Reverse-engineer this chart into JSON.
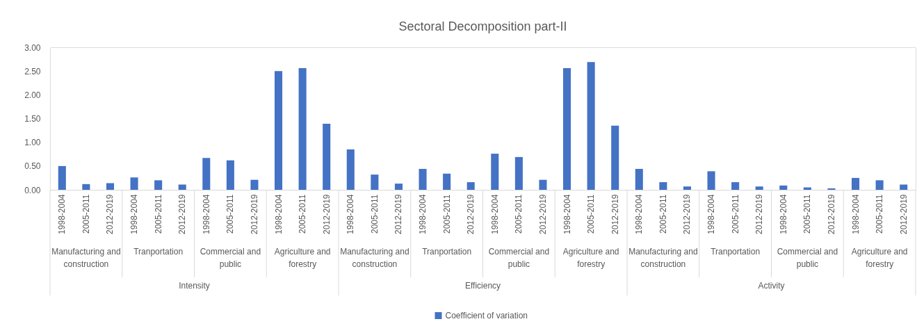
{
  "chart_data": {
    "type": "bar",
    "title": "Sectoral Decomposition part-II",
    "categories": [
      "1998-2004",
      "2005-2011",
      "2012-2019",
      "1998-2004",
      "2005-2011",
      "2012-2019",
      "1998-2004",
      "2005-2011",
      "2012-2019",
      "1998-2004",
      "2005-2011",
      "2012-2019",
      "1998-2004",
      "2005-2011",
      "2012-2019",
      "1998-2004",
      "2005-2011",
      "2012-2019",
      "1998-2004",
      "2005-2011",
      "2012-2019",
      "1998-2004",
      "2005-2011",
      "2012-2019",
      "1998-2004",
      "2005-2011",
      "2012-2019",
      "1998-2004",
      "2005-2011",
      "2012-2019",
      "1998-2004",
      "2005-2011",
      "2012-2019",
      "1998-2004",
      "2005-2011",
      "2012-2019"
    ],
    "series": [
      {
        "name": "Coefficient of variation",
        "color": "#4472c4",
        "values": [
          0.5,
          0.12,
          0.14,
          0.26,
          0.2,
          0.11,
          0.67,
          0.62,
          0.21,
          2.5,
          2.56,
          1.39,
          0.85,
          0.32,
          0.13,
          0.44,
          0.34,
          0.16,
          0.76,
          0.69,
          0.21,
          2.56,
          2.69,
          1.35,
          0.44,
          0.16,
          0.07,
          0.39,
          0.16,
          0.07,
          0.09,
          0.05,
          0.03,
          0.25,
          0.2,
          0.11
        ]
      }
    ],
    "annotations": [
      "Manufacturing and construction",
      "Tranportation",
      "Commercial and public",
      "Agriculture and forestry",
      "Manufacturing and construction",
      "Tranportation",
      "Commercial and public",
      "Agriculture and forestry",
      "Manufacturing and construction",
      "Tranportation",
      "Commercial and public",
      "Agriculture and forestry",
      "Intensity",
      "Efficiency",
      "Activity"
    ],
    "ylim": [
      0,
      3
    ],
    "yticks": [
      {
        "value": 0,
        "label": "0.00"
      },
      {
        "value": 0.5,
        "label": "0.50"
      },
      {
        "value": 1,
        "label": "1.00"
      },
      {
        "value": 1.5,
        "label": "1.50"
      },
      {
        "value": 2,
        "label": "2.00"
      },
      {
        "value": 2.5,
        "label": "2.50"
      },
      {
        "value": 3,
        "label": "3.00"
      }
    ],
    "grid": false,
    "legend": "bottom"
  }
}
